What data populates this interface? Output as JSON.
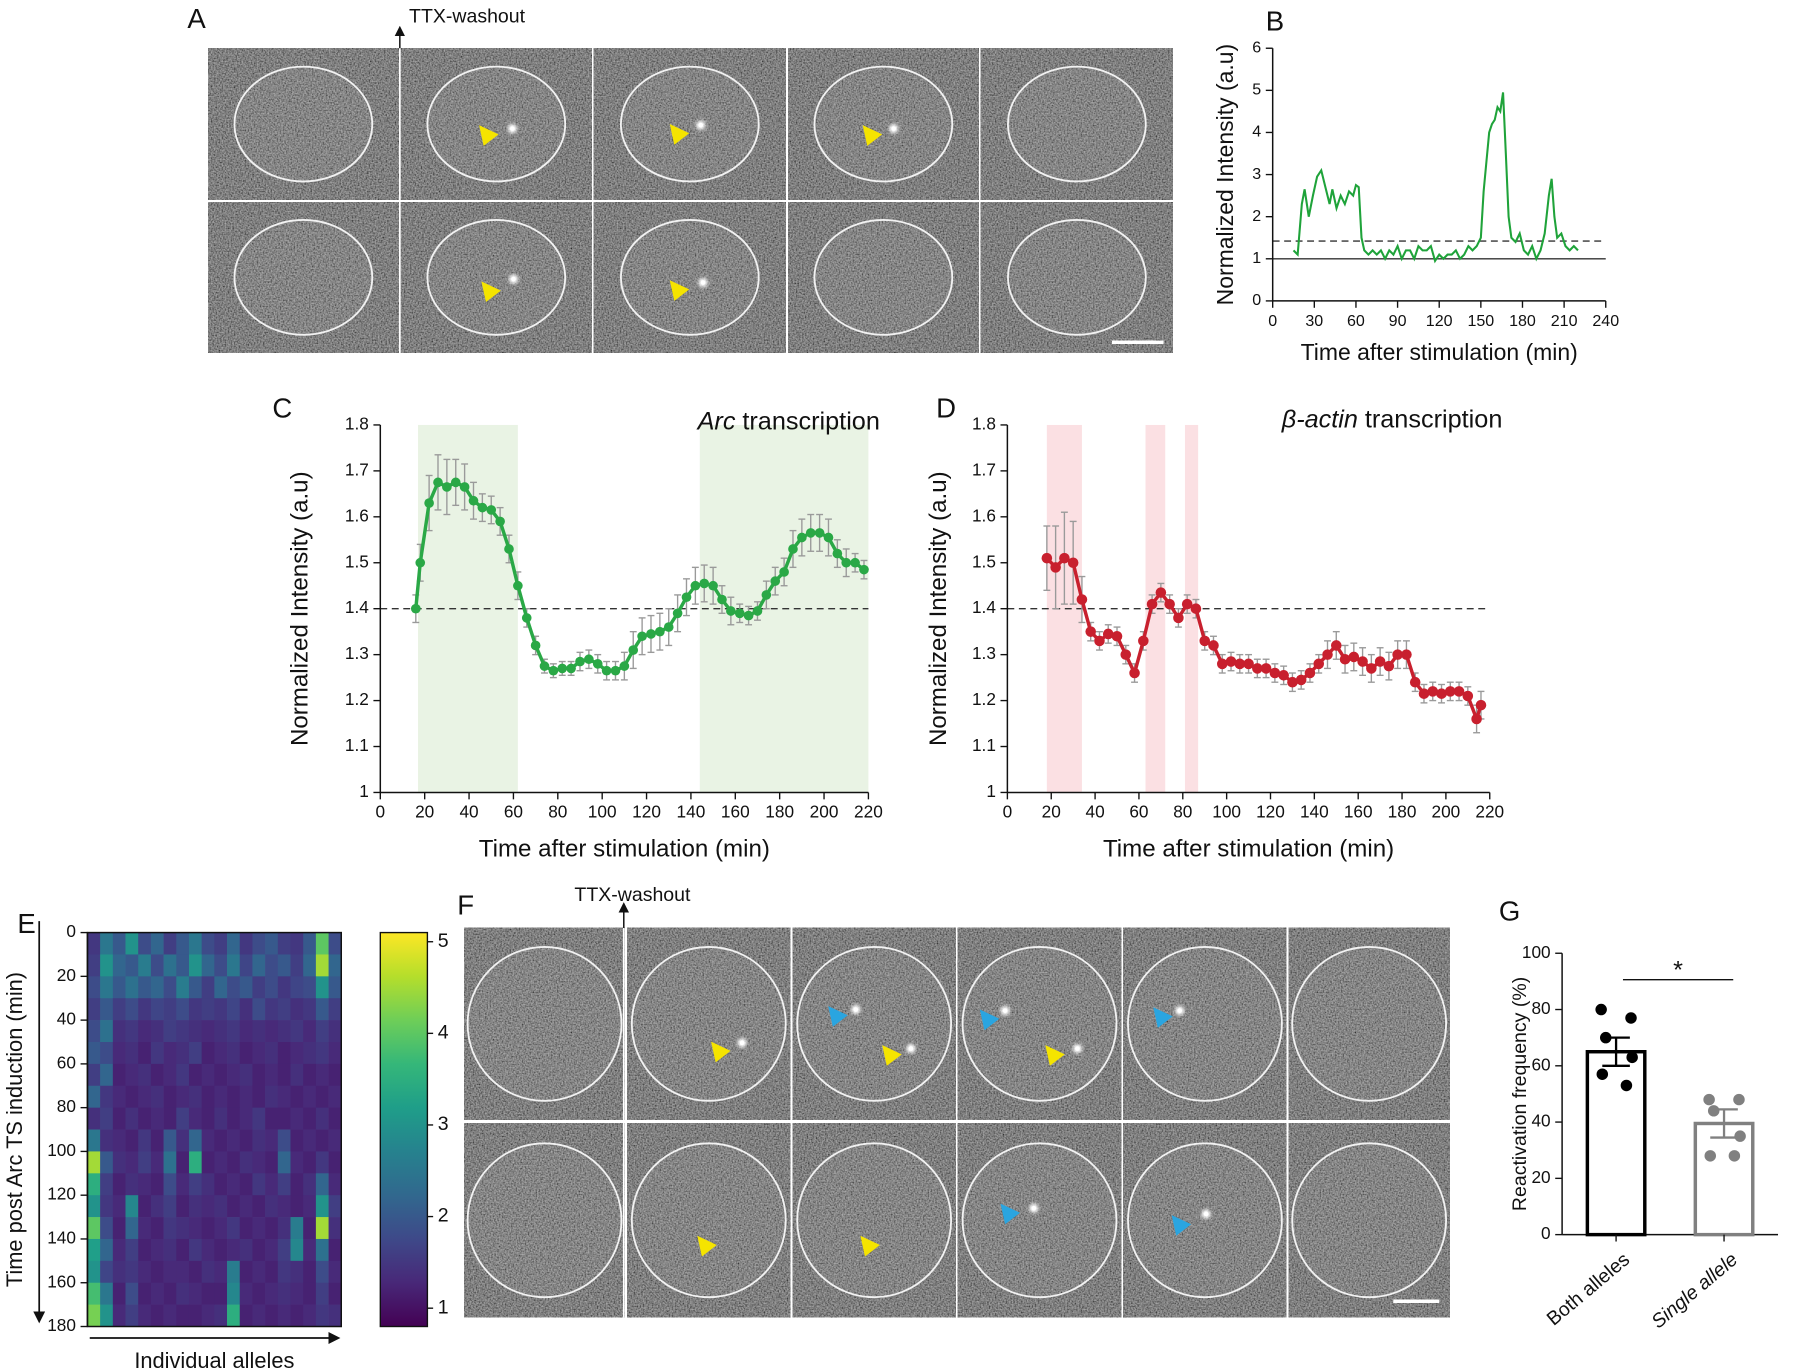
{
  "panels": {
    "A": {
      "letter": "A",
      "annotation": "TTX-washout"
    },
    "F": {
      "letter": "F",
      "annotation": "TTX-washout"
    }
  },
  "chart_data": [
    {
      "panel": "B",
      "type": "line",
      "x": [
        15,
        18,
        21,
        23,
        26,
        29,
        32,
        35,
        38,
        41,
        43,
        46,
        49,
        52,
        55,
        58,
        60,
        62,
        64,
        66,
        69,
        72,
        75,
        78,
        81,
        84,
        87,
        90,
        93,
        96,
        99,
        102,
        105,
        108,
        111,
        114,
        117,
        120,
        123,
        126,
        129,
        132,
        135,
        138,
        141,
        144,
        147,
        150,
        152,
        154,
        156,
        158,
        160,
        162,
        164,
        166,
        168,
        170,
        172,
        175,
        178,
        181,
        184,
        187,
        190,
        193,
        196,
        199,
        201,
        203,
        205,
        208,
        211,
        214,
        217,
        220
      ],
      "values": [
        1.2,
        1.1,
        2.3,
        2.65,
        2.0,
        2.5,
        2.95,
        3.1,
        2.7,
        2.3,
        2.65,
        2.2,
        2.5,
        2.3,
        2.6,
        2.5,
        2.75,
        2.7,
        1.5,
        1.2,
        1.1,
        1.2,
        1.1,
        1.2,
        1.0,
        1.2,
        1.1,
        1.3,
        1.0,
        1.2,
        1.2,
        1.0,
        1.3,
        1.2,
        1.2,
        1.3,
        0.95,
        1.1,
        1.0,
        1.1,
        1.1,
        1.2,
        1.0,
        1.1,
        1.3,
        1.2,
        1.3,
        1.5,
        2.6,
        3.3,
        4.0,
        4.2,
        4.3,
        4.6,
        4.5,
        4.95,
        3.5,
        2.0,
        1.5,
        1.4,
        1.6,
        1.2,
        1.1,
        1.3,
        1.0,
        1.2,
        1.6,
        2.5,
        2.9,
        2.0,
        1.5,
        1.6,
        1.3,
        1.2,
        1.3,
        1.2
      ],
      "color": "#1fa33a",
      "xlim": [
        0,
        240
      ],
      "xticks": [
        0,
        30,
        60,
        90,
        120,
        150,
        180,
        210,
        240
      ],
      "ylim": [
        0,
        6
      ],
      "yticks": [
        0,
        1,
        2,
        3,
        4,
        5,
        6
      ],
      "hlines": [
        {
          "value": 1,
          "style": "solid"
        },
        {
          "value": 1.42,
          "style": "dashed"
        }
      ],
      "xlabel": "Time after stimulation (min)",
      "ylabel": "Normalized Intensity (a.u)"
    },
    {
      "panel": "C",
      "type": "line",
      "title_parts": [
        "Arc",
        "transcription"
      ],
      "x": [
        16,
        18,
        22,
        26,
        30,
        34,
        38,
        42,
        46,
        50,
        54,
        58,
        62,
        66,
        70,
        74,
        78,
        82,
        86,
        90,
        94,
        98,
        102,
        106,
        110,
        114,
        118,
        122,
        126,
        130,
        134,
        138,
        142,
        146,
        150,
        154,
        158,
        162,
        166,
        170,
        174,
        178,
        182,
        186,
        190,
        194,
        198,
        202,
        206,
        210,
        214,
        218
      ],
      "values": [
        1.4,
        1.5,
        1.63,
        1.675,
        1.665,
        1.675,
        1.665,
        1.635,
        1.62,
        1.615,
        1.59,
        1.53,
        1.45,
        1.38,
        1.32,
        1.275,
        1.265,
        1.27,
        1.27,
        1.285,
        1.29,
        1.28,
        1.265,
        1.265,
        1.275,
        1.31,
        1.34,
        1.345,
        1.35,
        1.36,
        1.39,
        1.425,
        1.45,
        1.455,
        1.45,
        1.42,
        1.395,
        1.39,
        1.385,
        1.395,
        1.43,
        1.46,
        1.48,
        1.53,
        1.555,
        1.565,
        1.565,
        1.555,
        1.52,
        1.5,
        1.5,
        1.485
      ],
      "errors": [
        0.03,
        0.04,
        0.06,
        0.06,
        0.06,
        0.05,
        0.05,
        0.04,
        0.03,
        0.03,
        0.03,
        0.03,
        0.03,
        0.02,
        0.02,
        0.015,
        0.015,
        0.015,
        0.015,
        0.02,
        0.02,
        0.02,
        0.02,
        0.02,
        0.03,
        0.04,
        0.04,
        0.04,
        0.04,
        0.04,
        0.04,
        0.04,
        0.04,
        0.04,
        0.04,
        0.03,
        0.03,
        0.02,
        0.02,
        0.02,
        0.03,
        0.03,
        0.03,
        0.04,
        0.04,
        0.04,
        0.04,
        0.04,
        0.03,
        0.03,
        0.02,
        0.02
      ],
      "color": "#2aa846",
      "markers": true,
      "shaded_ranges": [
        [
          17,
          62
        ],
        [
          144,
          220
        ]
      ],
      "shade_color": "#e9f3e4",
      "hlines": [
        {
          "value": 1.4,
          "style": "dashed"
        }
      ],
      "xlim": [
        0,
        220
      ],
      "xticks": [
        0,
        20,
        40,
        60,
        80,
        100,
        120,
        140,
        160,
        180,
        200,
        220
      ],
      "ylim": [
        1,
        1.8
      ],
      "yticks": [
        1,
        1.1,
        1.2,
        1.3,
        1.4,
        1.5,
        1.6,
        1.7,
        1.8
      ],
      "xlabel": "Time after stimulation (min)",
      "ylabel": "Normalized Intensity (a.u)"
    },
    {
      "panel": "D",
      "type": "line",
      "title_parts": [
        "β-actin",
        "transcription"
      ],
      "x": [
        18,
        22,
        26,
        30,
        34,
        38,
        42,
        46,
        50,
        54,
        58,
        62,
        66,
        70,
        74,
        78,
        82,
        86,
        90,
        94,
        98,
        102,
        106,
        110,
        114,
        118,
        122,
        126,
        130,
        134,
        138,
        142,
        146,
        150,
        154,
        158,
        162,
        166,
        170,
        174,
        178,
        182,
        186,
        190,
        194,
        198,
        202,
        206,
        210,
        214,
        216
      ],
      "values": [
        1.51,
        1.49,
        1.51,
        1.5,
        1.42,
        1.35,
        1.33,
        1.345,
        1.34,
        1.3,
        1.26,
        1.33,
        1.41,
        1.435,
        1.41,
        1.38,
        1.41,
        1.4,
        1.33,
        1.32,
        1.28,
        1.285,
        1.28,
        1.28,
        1.27,
        1.27,
        1.26,
        1.255,
        1.24,
        1.245,
        1.26,
        1.28,
        1.3,
        1.32,
        1.29,
        1.295,
        1.285,
        1.27,
        1.285,
        1.275,
        1.3,
        1.3,
        1.24,
        1.215,
        1.22,
        1.215,
        1.22,
        1.22,
        1.21,
        1.16,
        1.19
      ],
      "errors": [
        0.07,
        0.09,
        0.1,
        0.09,
        0.05,
        0.02,
        0.02,
        0.02,
        0.02,
        0.02,
        0.02,
        0.02,
        0.02,
        0.02,
        0.02,
        0.02,
        0.02,
        0.02,
        0.02,
        0.02,
        0.02,
        0.02,
        0.02,
        0.02,
        0.02,
        0.02,
        0.02,
        0.02,
        0.02,
        0.02,
        0.02,
        0.02,
        0.03,
        0.03,
        0.03,
        0.03,
        0.03,
        0.03,
        0.03,
        0.03,
        0.03,
        0.03,
        0.02,
        0.02,
        0.02,
        0.02,
        0.02,
        0.02,
        0.02,
        0.03,
        0.03
      ],
      "color": "#c8202e",
      "markers": true,
      "shaded_ranges": [
        [
          18,
          34
        ],
        [
          63,
          72
        ],
        [
          81,
          87
        ]
      ],
      "shade_color": "#fbe0e3",
      "hlines": [
        {
          "value": 1.4,
          "style": "dashed"
        }
      ],
      "xlim": [
        0,
        220
      ],
      "xticks": [
        0,
        20,
        40,
        60,
        80,
        100,
        120,
        140,
        160,
        180,
        200,
        220
      ],
      "ylim": [
        1,
        1.8
      ],
      "yticks": [
        1,
        1.1,
        1.2,
        1.3,
        1.4,
        1.5,
        1.6,
        1.7,
        1.8
      ],
      "xlabel": "Time after stimulation (min)",
      "ylabel": "Normalized Intensity (a.u)"
    },
    {
      "panel": "E",
      "type": "heatmap",
      "colormap": "viridis",
      "zlim": [
        0.8,
        5.1
      ],
      "colorbar_ticks": [
        1,
        2,
        3,
        4,
        5
      ],
      "ylim": [
        0,
        180
      ],
      "y_inverted": true,
      "yticks": [
        0,
        20,
        40,
        60,
        80,
        100,
        120,
        140,
        160,
        180
      ],
      "xlabel": "Individual alleles",
      "ylabel": "Time post Arc TS induction (min)",
      "values": [
        [
          1.5,
          2.5,
          2,
          3,
          1.8,
          2.2,
          1.6,
          2,
          2.5,
          1.8,
          1.6,
          2.2,
          1.5,
          1.8,
          2,
          1.6,
          1.5,
          2,
          4,
          1.8
        ],
        [
          1.6,
          3,
          2.2,
          2,
          2.6,
          1.8,
          2.4,
          2,
          3,
          2.2,
          1.8,
          2.5,
          1.7,
          2.2,
          1.8,
          2,
          1.6,
          2.2,
          4.5,
          2.2
        ],
        [
          1.8,
          2.5,
          2,
          2.4,
          2,
          2.2,
          1.8,
          2.6,
          2,
          1.6,
          2.2,
          1.8,
          2,
          1.6,
          1.8,
          1.5,
          1.7,
          1.8,
          3,
          2
        ],
        [
          1.6,
          2,
          1.6,
          1.8,
          1.5,
          1.7,
          1.6,
          1.8,
          1.5,
          1.6,
          1.5,
          1.7,
          1.4,
          1.8,
          1.5,
          1.6,
          1.4,
          1.5,
          2,
          1.6
        ],
        [
          1.8,
          2.4,
          1.4,
          1.5,
          1.3,
          1.4,
          1.6,
          1.5,
          1.4,
          1.3,
          1.4,
          1.5,
          1.3,
          1.4,
          1.3,
          1.4,
          1.5,
          1.3,
          1.6,
          1.4
        ],
        [
          2,
          1.8,
          1.3,
          1.4,
          1.2,
          1.5,
          1.3,
          1.4,
          1.6,
          1.2,
          1.3,
          1.4,
          1.2,
          1.3,
          1.4,
          1.2,
          1.3,
          1.4,
          1.5,
          1.3
        ],
        [
          1.6,
          2.2,
          1.2,
          1.3,
          1.4,
          1.2,
          1.3,
          1.5,
          1.2,
          1.3,
          1.2,
          1.3,
          1.4,
          1.2,
          1.3,
          1.2,
          1.4,
          1.2,
          1.3,
          1.2
        ],
        [
          2.2,
          1.5,
          1.3,
          1.2,
          1.3,
          1.4,
          1.2,
          1.3,
          1.4,
          1.2,
          1.3,
          1.2,
          1.3,
          1.2,
          1.4,
          1.3,
          1.2,
          1.3,
          1.2,
          1.3
        ],
        [
          1.4,
          1.6,
          1.2,
          1.4,
          1.2,
          1.3,
          1.2,
          1.6,
          1.3,
          1.2,
          1.4,
          1.2,
          1.3,
          1.5,
          1.2,
          1.2,
          1.3,
          1.2,
          1.4,
          1.2
        ],
        [
          2.5,
          1.4,
          1.3,
          1.2,
          1.5,
          1.2,
          2,
          1.4,
          2.2,
          1.3,
          1.2,
          1.3,
          1.2,
          1.4,
          1.3,
          1.8,
          1.2,
          1.3,
          1.2,
          1.3
        ],
        [
          4.5,
          2,
          1.4,
          1.3,
          1.6,
          1.3,
          2.4,
          1.2,
          3.5,
          1.2,
          1.3,
          1.2,
          1.4,
          1.3,
          1.2,
          2.2,
          1.3,
          1.2,
          1.5,
          1.2
        ],
        [
          3.5,
          1.6,
          1.2,
          1.4,
          1.3,
          1.2,
          1.8,
          1.3,
          1.6,
          1.4,
          1.2,
          1.3,
          1.2,
          1.5,
          1.3,
          1.6,
          1.2,
          1.4,
          2.2,
          1.3
        ],
        [
          3,
          1.5,
          1.3,
          2.8,
          1.2,
          1.4,
          1.6,
          1.2,
          1.4,
          1.3,
          1.4,
          1.2,
          1.3,
          1.2,
          1.4,
          1.3,
          1.2,
          1.3,
          3,
          1.6
        ],
        [
          4,
          1.8,
          1.2,
          2.2,
          1.3,
          1.2,
          1.5,
          1.4,
          1.3,
          1.2,
          1.3,
          1.5,
          1.2,
          1.3,
          1.2,
          1.4,
          2.6,
          1.2,
          4.5,
          1.4
        ],
        [
          3.2,
          2.2,
          1.3,
          1.6,
          1.2,
          1.3,
          1.4,
          1.2,
          1.5,
          1.3,
          1.2,
          1.3,
          1.4,
          1.2,
          1.3,
          1.6,
          2.8,
          1.3,
          2.4,
          1.2
        ],
        [
          3,
          1.7,
          1.4,
          1.5,
          1.3,
          1.2,
          1.3,
          1.3,
          1.2,
          1.4,
          1.3,
          2.6,
          1.2,
          1.3,
          1.2,
          1.5,
          1.4,
          1.2,
          1.8,
          1.3
        ],
        [
          3.8,
          2.5,
          1.2,
          1.8,
          1.2,
          1.3,
          1.2,
          1.4,
          1.3,
          1.2,
          1.2,
          2.8,
          1.3,
          1.2,
          1.3,
          1.4,
          1.3,
          1.2,
          1.6,
          1.2
        ],
        [
          4.2,
          3,
          1.3,
          1.6,
          1.3,
          1.2,
          1.3,
          1.2,
          1.2,
          1.3,
          1.4,
          3.5,
          1.2,
          1.3,
          1.2,
          1.3,
          1.2,
          1.3,
          1.5,
          1.4
        ]
      ]
    },
    {
      "panel": "G",
      "type": "bar",
      "categories": [
        "Both alleles",
        "Single allele"
      ],
      "label_styles": [
        "normal",
        "italic"
      ],
      "values": [
        65,
        39.5
      ],
      "errors": [
        5,
        5
      ],
      "points": [
        [
          80,
          77,
          70,
          63,
          57,
          53
        ],
        [
          48,
          48,
          44,
          35,
          28,
          28
        ]
      ],
      "colors": [
        "#000000",
        "#808080"
      ],
      "ylim": [
        0,
        100
      ],
      "yticks": [
        0,
        20,
        40,
        60,
        80,
        100
      ],
      "ylabel": "Reactivation frequency (%)",
      "significance": "*"
    }
  ]
}
